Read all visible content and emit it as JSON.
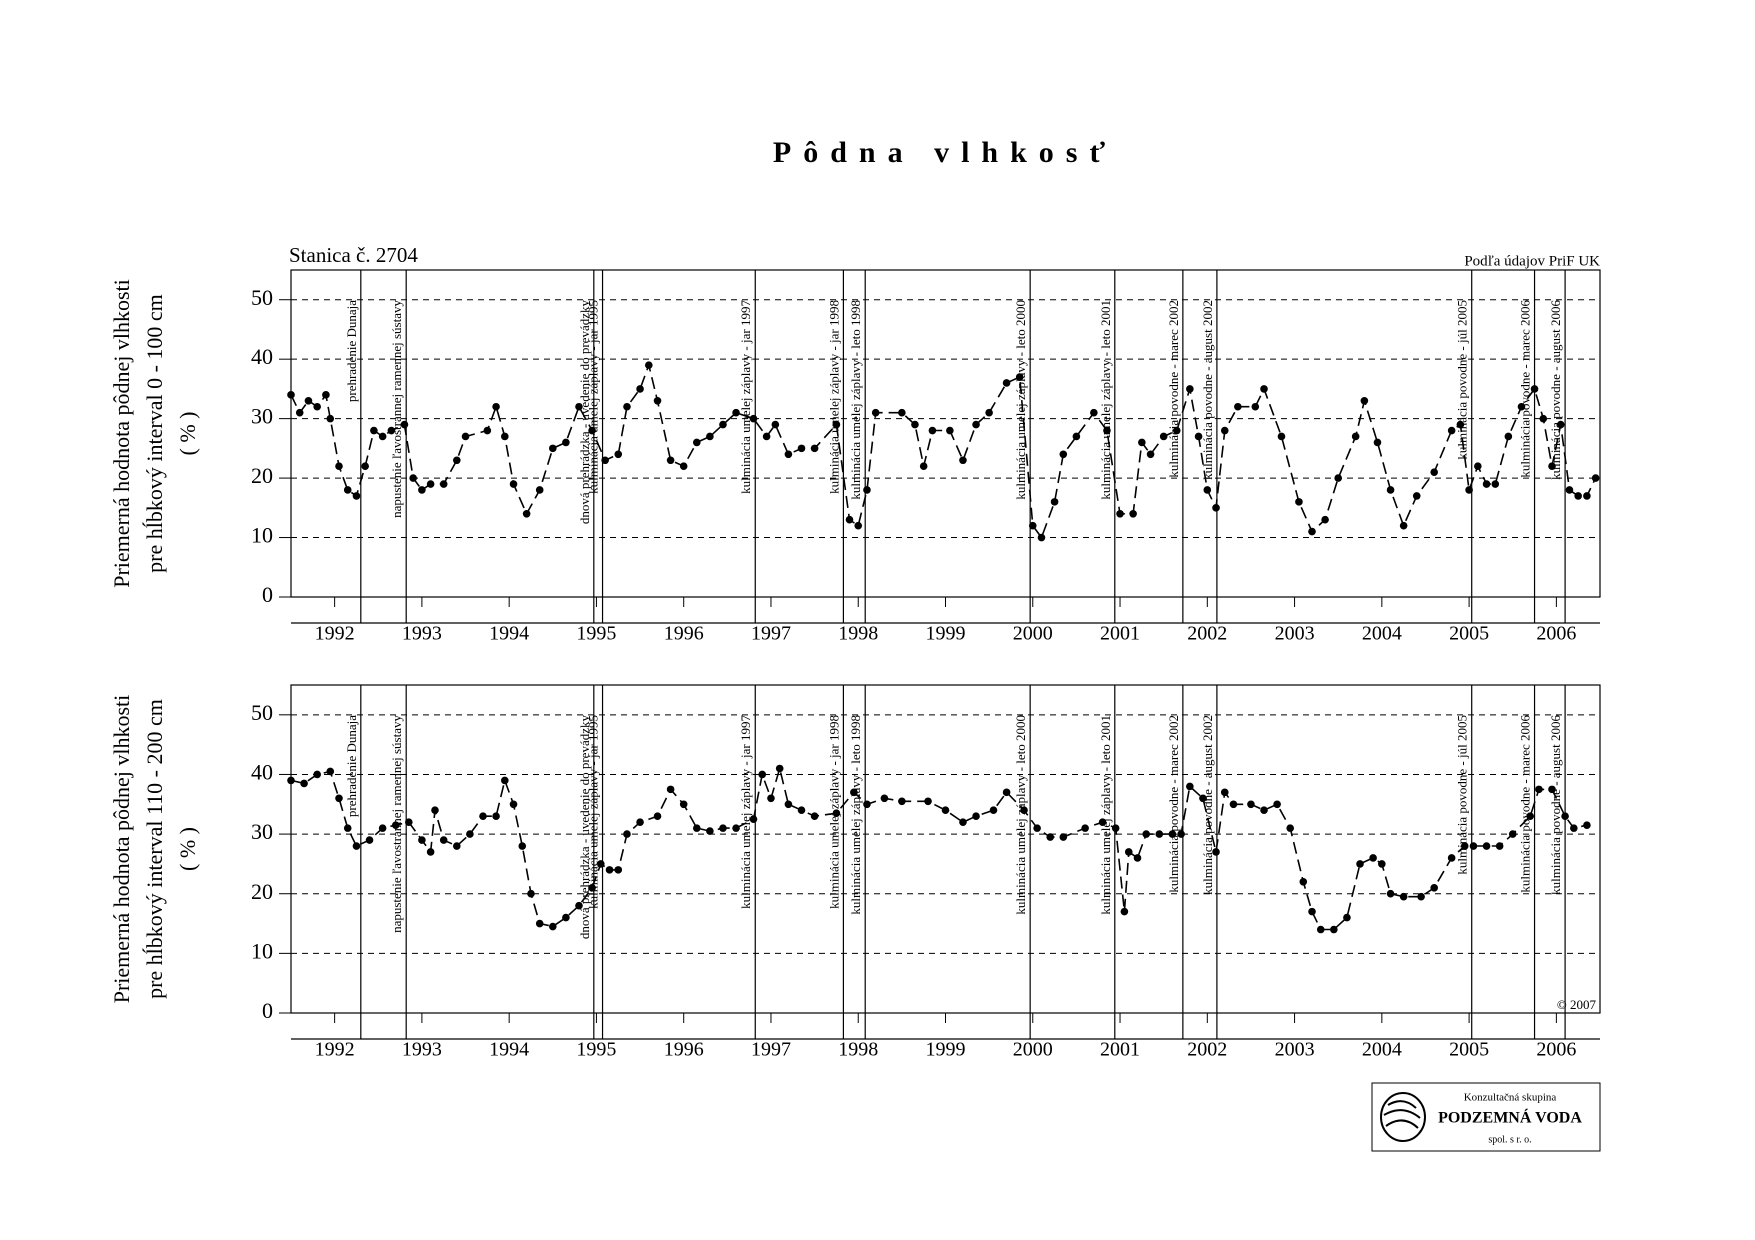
{
  "title": "Pôdna vlhkosť",
  "station": "Stanica č. 2704",
  "source": "Podľa údajov PriF UK",
  "copyright": "© 2007",
  "logo": {
    "line1": "Konzultačná skupina",
    "line2": "PODZEMNÁ VODA",
    "line3": "spol. s r. o."
  },
  "chart_data": [
    {
      "type": "line",
      "y_label": [
        "Priemerná hodnota pôdnej vlhkosti",
        "pre hĺbkový interval 0 - 100 cm",
        "( % )"
      ],
      "xlim": [
        1992,
        2007
      ],
      "ylim": [
        0,
        55
      ],
      "xticks": [
        {
          "value": 1992.5,
          "label": "1992"
        },
        {
          "value": 1993.5,
          "label": "1993"
        },
        {
          "value": 1994.5,
          "label": "1994"
        },
        {
          "value": 1995.5,
          "label": "1995"
        },
        {
          "value": 1996.5,
          "label": "1996"
        },
        {
          "value": 1997.5,
          "label": "1997"
        },
        {
          "value": 1998.5,
          "label": "1998"
        },
        {
          "value": 1999.5,
          "label": "1999"
        },
        {
          "value": 2000.5,
          "label": "2000"
        },
        {
          "value": 2001.5,
          "label": "2001"
        },
        {
          "value": 2002.5,
          "label": "2002"
        },
        {
          "value": 2003.5,
          "label": "2003"
        },
        {
          "value": 2004.5,
          "label": "2004"
        },
        {
          "value": 2005.5,
          "label": "2005"
        },
        {
          "value": 2006.5,
          "label": "2006"
        }
      ],
      "yticks": [
        0,
        10,
        20,
        30,
        40,
        50
      ],
      "grid": true,
      "series": [
        {
          "color": "#000000",
          "x": [
            1992.0,
            1992.1,
            1992.2,
            1992.3,
            1992.4,
            1992.45,
            1992.55,
            1992.65,
            1992.75,
            1992.85,
            1992.95,
            1993.05,
            1993.15,
            1993.3,
            1993.4,
            1993.5,
            1993.6,
            1993.75,
            1993.9,
            1994.0,
            1994.25,
            1994.35,
            1994.45,
            1994.55,
            1994.7,
            1994.85,
            1995.0,
            1995.15,
            1995.3,
            1995.45,
            1995.6,
            1995.75,
            1995.85,
            1996.0,
            1996.1,
            1996.2,
            1996.35,
            1996.5,
            1996.65,
            1996.8,
            1996.95,
            1997.1,
            1997.3,
            1997.45,
            1997.55,
            1997.7,
            1997.85,
            1998.0,
            1998.25,
            1998.4,
            1998.5,
            1998.6,
            1998.7,
            1999.0,
            1999.15,
            1999.25,
            1999.35,
            1999.55,
            1999.7,
            1999.85,
            2000.0,
            2000.2,
            2000.35,
            2000.5,
            2000.6,
            2000.75,
            2000.85,
            2001.0,
            2001.2,
            2001.35,
            2001.5,
            2001.65,
            2001.75,
            2001.85,
            2002.0,
            2002.15,
            2002.3,
            2002.4,
            2002.5,
            2002.6,
            2002.7,
            2002.85,
            2003.05,
            2003.15,
            2003.35,
            2003.55,
            2003.7,
            2003.85,
            2004.0,
            2004.2,
            2004.3,
            2004.45,
            2004.6,
            2004.75,
            2004.9,
            2005.1,
            2005.3,
            2005.4,
            2005.5,
            2005.6,
            2005.7,
            2005.8,
            2005.95,
            2006.1,
            2006.25,
            2006.35,
            2006.45,
            2006.55,
            2006.65,
            2006.75,
            2006.85,
            2006.95
          ],
          "values": [
            34,
            31,
            33,
            32,
            34,
            30,
            22,
            18,
            17,
            22,
            28,
            27,
            28,
            29,
            20,
            18,
            19,
            19,
            23,
            27,
            28,
            32,
            27,
            19,
            14,
            18,
            25,
            26,
            32,
            28,
            23,
            24,
            32,
            35,
            39,
            33,
            23,
            22,
            26,
            27,
            29,
            31,
            30,
            27,
            29,
            24,
            25,
            25,
            29,
            13,
            12,
            18,
            31,
            31,
            29,
            22,
            28,
            28,
            23,
            29,
            31,
            36,
            37,
            12,
            10,
            16,
            24,
            27,
            31,
            28,
            14,
            14,
            26,
            24,
            27,
            28,
            35,
            27,
            18,
            15,
            28,
            32,
            32,
            35,
            27,
            16,
            11,
            13,
            20,
            27,
            33,
            26,
            18,
            12,
            17,
            21,
            28,
            29,
            18,
            22,
            19,
            19,
            27,
            32,
            35,
            30,
            22,
            29,
            18,
            17,
            17,
            20
          ]
        }
      ],
      "annotations": [
        {
          "x": 1992.8,
          "text": "prehradenie Dunaja"
        },
        {
          "x": 1993.32,
          "text": "napustenie ľavostrannej ramennej sústavy"
        },
        {
          "x": 1995.47,
          "text": "dnová prehrádzka - uvedenie do prevádzky"
        },
        {
          "x": 1995.57,
          "text": "kulminácia umelej záplavy - jar 1995"
        },
        {
          "x": 1997.32,
          "text": "kulminácia umelej záplavy - jar 1997"
        },
        {
          "x": 1998.33,
          "text": "kulminácia umelej záplavy - jar 1998"
        },
        {
          "x": 1998.58,
          "text": "kulminácia umelej záplavy - leto 1998"
        },
        {
          "x": 2000.47,
          "text": "kulminácia umelej záplavy - leto 2000"
        },
        {
          "x": 2001.44,
          "text": "kulminácia umelej záplavy - leto 2001"
        },
        {
          "x": 2002.22,
          "text": "kulminácia povodne - marec 2002"
        },
        {
          "x": 2002.61,
          "text": "kulminácia povodne - august 2002"
        },
        {
          "x": 2005.53,
          "text": "kulminácia povodne - júl 2005"
        },
        {
          "x": 2006.25,
          "text": "kulminácia povodne - marec 2006"
        },
        {
          "x": 2006.6,
          "text": "kulminácia povodne - august 2006"
        }
      ]
    },
    {
      "type": "line",
      "y_label": [
        "Priemerná hodnota pôdnej vlhkosti",
        "pre hĺbkový interval 110 - 200 cm",
        "( % )"
      ],
      "xlim": [
        1992,
        2007
      ],
      "ylim": [
        0,
        55
      ],
      "xticks": [
        {
          "value": 1992.5,
          "label": "1992"
        },
        {
          "value": 1993.5,
          "label": "1993"
        },
        {
          "value": 1994.5,
          "label": "1994"
        },
        {
          "value": 1995.5,
          "label": "1995"
        },
        {
          "value": 1996.5,
          "label": "1996"
        },
        {
          "value": 1997.5,
          "label": "1997"
        },
        {
          "value": 1998.5,
          "label": "1998"
        },
        {
          "value": 1999.5,
          "label": "1999"
        },
        {
          "value": 2000.5,
          "label": "2000"
        },
        {
          "value": 2001.5,
          "label": "2001"
        },
        {
          "value": 2002.5,
          "label": "2002"
        },
        {
          "value": 2003.5,
          "label": "2003"
        },
        {
          "value": 2004.5,
          "label": "2004"
        },
        {
          "value": 2005.5,
          "label": "2005"
        },
        {
          "value": 2006.5,
          "label": "2006"
        }
      ],
      "yticks": [
        0,
        10,
        20,
        30,
        40,
        50
      ],
      "grid": true,
      "series": [
        {
          "color": "#000000",
          "x": [
            1992.0,
            1992.15,
            1992.3,
            1992.45,
            1992.55,
            1992.65,
            1992.75,
            1992.9,
            1993.05,
            1993.2,
            1993.35,
            1993.5,
            1993.6,
            1993.65,
            1993.75,
            1993.9,
            1994.05,
            1994.2,
            1994.35,
            1994.45,
            1994.55,
            1994.65,
            1994.75,
            1994.85,
            1995.0,
            1995.15,
            1995.3,
            1995.45,
            1995.55,
            1995.65,
            1995.75,
            1995.85,
            1996.0,
            1996.2,
            1996.35,
            1996.5,
            1996.65,
            1996.8,
            1996.95,
            1997.1,
            1997.3,
            1997.4,
            1997.5,
            1997.6,
            1997.7,
            1997.85,
            1998.0,
            1998.25,
            1998.45,
            1998.6,
            1998.8,
            1999.0,
            1999.3,
            1999.5,
            1999.7,
            1999.85,
            2000.05,
            2000.2,
            2000.4,
            2000.55,
            2000.7,
            2000.85,
            2001.1,
            2001.3,
            2001.45,
            2001.55,
            2001.6,
            2001.7,
            2001.8,
            2001.95,
            2002.1,
            2002.2,
            2002.3,
            2002.45,
            2002.6,
            2002.7,
            2002.8,
            2003.0,
            2003.15,
            2003.3,
            2003.45,
            2003.6,
            2003.7,
            2003.8,
            2003.95,
            2004.1,
            2004.25,
            2004.4,
            2004.5,
            2004.6,
            2004.75,
            2004.95,
            2005.1,
            2005.3,
            2005.45,
            2005.55,
            2005.7,
            2005.85,
            2006.0,
            2006.2,
            2006.3,
            2006.45,
            2006.6,
            2006.7,
            2006.85
          ],
          "values": [
            39,
            38.5,
            40,
            40.5,
            36,
            31,
            28,
            29,
            31,
            31.5,
            32,
            29,
            27,
            34,
            29,
            28,
            30,
            33,
            33,
            39,
            35,
            28,
            20,
            15,
            14.5,
            16,
            18,
            21,
            25,
            24,
            24,
            30,
            32,
            33,
            37.5,
            35,
            31,
            30.5,
            31,
            31,
            32.5,
            40,
            36,
            41,
            35,
            34,
            33,
            33.5,
            37,
            35,
            36,
            35.5,
            35.5,
            34,
            32,
            33,
            34,
            37,
            34,
            31,
            29.5,
            29.5,
            31,
            32,
            31,
            17,
            27,
            26,
            30,
            30,
            30,
            30,
            38,
            36,
            27,
            37,
            35,
            35,
            34,
            35,
            31,
            22,
            17,
            14,
            14,
            16,
            25,
            26,
            25,
            20,
            19.5,
            19.5,
            21,
            26,
            28,
            28,
            28,
            28,
            30,
            33,
            37.5,
            37.5,
            33,
            31,
            31.5
          ]
        }
      ],
      "annotations": [
        {
          "x": 1992.8,
          "text": "prehradenie Dunaja"
        },
        {
          "x": 1993.32,
          "text": "napustenie ľavostrannej ramennej sústavy"
        },
        {
          "x": 1995.47,
          "text": "dnová prehrádzka - uvedenie do prevádzky"
        },
        {
          "x": 1995.57,
          "text": "kulminácia umelej záplavy - jar 1995"
        },
        {
          "x": 1997.32,
          "text": "kulminácia umelej záplavy - jar 1997"
        },
        {
          "x": 1998.33,
          "text": "kulminácia umelej záplavy - jar 1998"
        },
        {
          "x": 1998.58,
          "text": "kulminácia umelej záplavy - leto 1998"
        },
        {
          "x": 2000.47,
          "text": "kulminácia umelej záplavy - leto 2000"
        },
        {
          "x": 2001.44,
          "text": "kulminácia umelej záplavy - leto 2001"
        },
        {
          "x": 2002.22,
          "text": "kulminácia povodne - marec 2002"
        },
        {
          "x": 2002.61,
          "text": "kulminácia povodne - august 2002"
        },
        {
          "x": 2005.53,
          "text": "kulminácia povodne - júl 2005"
        },
        {
          "x": 2006.25,
          "text": "kulminácia povodne - marec 2006"
        },
        {
          "x": 2006.6,
          "text": "kulminácia povodne - august 2006"
        }
      ]
    }
  ]
}
